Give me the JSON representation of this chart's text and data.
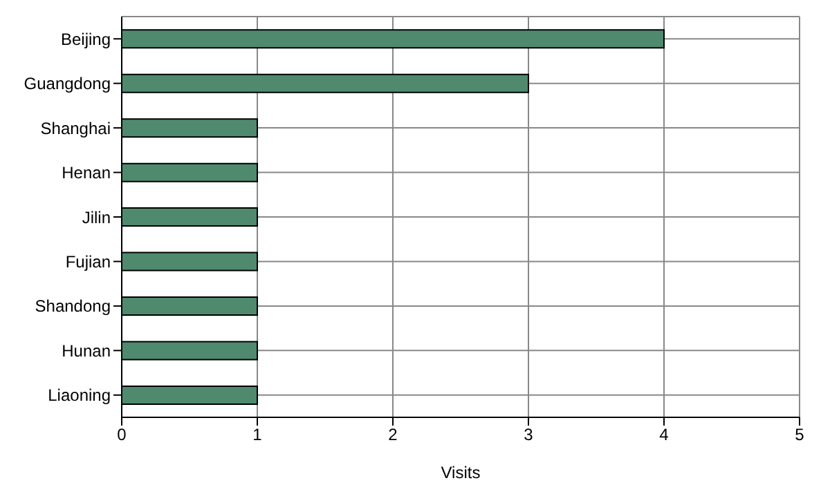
{
  "chart_data": {
    "type": "bar",
    "orientation": "horizontal",
    "xlabel": "Visits",
    "categories": [
      "Beijing",
      "Guangdong",
      "Shanghai",
      "Henan",
      "Jilin",
      "Fujian",
      "Shandong",
      "Hunan",
      "Liaoning"
    ],
    "values": [
      4,
      3,
      1,
      1,
      1,
      1,
      1,
      1,
      1
    ],
    "color": "#4f8a6e",
    "xlim": [
      0,
      5
    ],
    "xticks": [
      0,
      1,
      2,
      3,
      4,
      5
    ],
    "grid": true
  }
}
